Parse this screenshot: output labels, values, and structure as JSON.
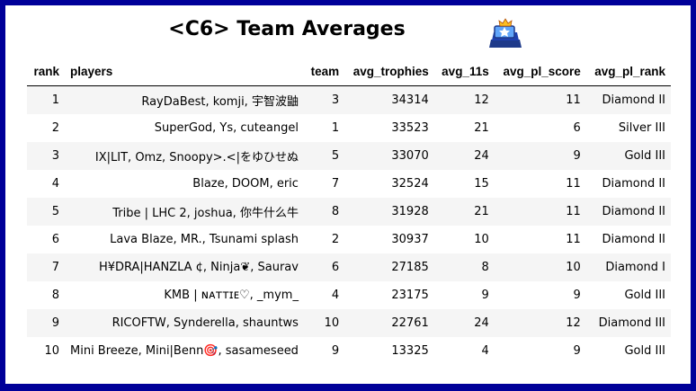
{
  "title": "<C6> Team Averages",
  "icon": "trophy-icon",
  "columns": [
    "rank",
    "players",
    "team",
    "avg_trophies",
    "avg_11s",
    "avg_pl_score",
    "avg_pl_rank"
  ],
  "rows": [
    {
      "rank": "1",
      "players": "RayDaBest, komji, 宇智波鼬",
      "team": "3",
      "avg_trophies": "34314",
      "avg_11s": "12",
      "avg_pl_score": "11",
      "avg_pl_rank": "Diamond II"
    },
    {
      "rank": "2",
      "players": "SuperGod, Ys, cuteangel",
      "team": "1",
      "avg_trophies": "33523",
      "avg_11s": "21",
      "avg_pl_score": "6",
      "avg_pl_rank": "Silver III"
    },
    {
      "rank": "3",
      "players": "IX|LIT, Omz, Snoopy>.<|をゆひせぬ",
      "team": "5",
      "avg_trophies": "33070",
      "avg_11s": "24",
      "avg_pl_score": "9",
      "avg_pl_rank": "Gold III"
    },
    {
      "rank": "4",
      "players": "Blaze, DOOM, eric",
      "team": "7",
      "avg_trophies": "32524",
      "avg_11s": "15",
      "avg_pl_score": "11",
      "avg_pl_rank": "Diamond II"
    },
    {
      "rank": "5",
      "players": "Tribe | LHC 2, joshua, 你牛什么牛",
      "team": "8",
      "avg_trophies": "31928",
      "avg_11s": "21",
      "avg_pl_score": "11",
      "avg_pl_rank": "Diamond II"
    },
    {
      "rank": "6",
      "players": "Lava Blaze, MR., Tsunami splash",
      "team": "2",
      "avg_trophies": "30937",
      "avg_11s": "10",
      "avg_pl_score": "11",
      "avg_pl_rank": "Diamond II"
    },
    {
      "rank": "7",
      "players": "H¥DRA|HANZLA ¢, Ninja❦, Saurav",
      "team": "6",
      "avg_trophies": "27185",
      "avg_11s": "8",
      "avg_pl_score": "10",
      "avg_pl_rank": "Diamond I"
    },
    {
      "rank": "8",
      "players": "KMB | ɴᴀᴛᴛɪᴇ♡, _mym_",
      "team": "4",
      "avg_trophies": "23175",
      "avg_11s": "9",
      "avg_pl_score": "9",
      "avg_pl_rank": "Gold III"
    },
    {
      "rank": "9",
      "players": "RICOFTW, Synderella, shauntws",
      "team": "10",
      "avg_trophies": "22761",
      "avg_11s": "24",
      "avg_pl_score": "12",
      "avg_pl_rank": "Diamond III"
    },
    {
      "rank": "10",
      "players": "Mini Breeze, Mini|Benn🎯, sasameseed",
      "team": "9",
      "avg_trophies": "13325",
      "avg_11s": "4",
      "avg_pl_score": "9",
      "avg_pl_rank": "Gold III"
    }
  ]
}
